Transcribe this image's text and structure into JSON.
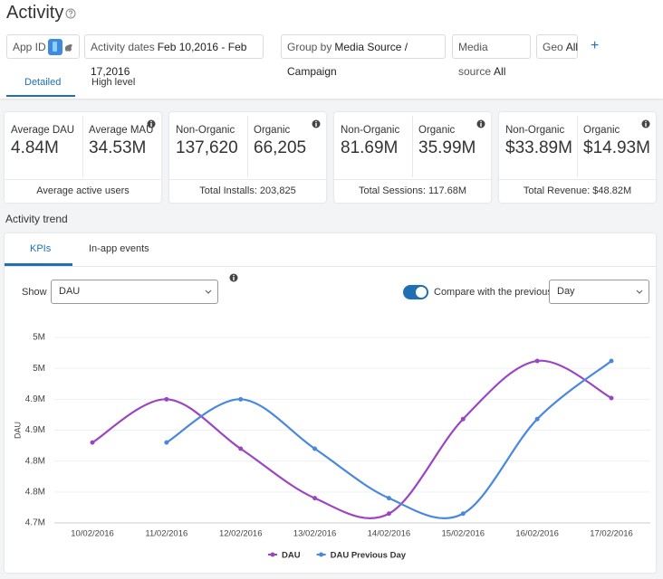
{
  "header": {
    "title": "Activity",
    "filters": [
      {
        "label": "App ID"
      },
      {
        "label": "Activity dates",
        "value": "Feb 10,2016 - Feb 17,2016"
      },
      {
        "label": "Group by",
        "value": "Media Source / Campaign"
      },
      {
        "label": "Media source",
        "value": "All"
      },
      {
        "label": "Geo",
        "value": "All"
      }
    ],
    "add": "+"
  },
  "tabs": [
    "Detailed",
    "High level"
  ],
  "cards": [
    {
      "metrics": [
        {
          "label": "Average DAU",
          "value": "4.84M"
        },
        {
          "label": "Average MAU",
          "value": "34.53M"
        }
      ],
      "footer": "Average active users"
    },
    {
      "metrics": [
        {
          "label": "Non-Organic",
          "value": "137,620"
        },
        {
          "label": "Organic",
          "value": "66,205"
        }
      ],
      "footer": "Total Installs: 203,825"
    },
    {
      "metrics": [
        {
          "label": "Non-Organic",
          "value": "81.69M"
        },
        {
          "label": "Organic",
          "value": "35.99M"
        }
      ],
      "footer": "Total Sessions: 117.68M"
    },
    {
      "metrics": [
        {
          "label": "Non-Organic",
          "value": "$33.89M"
        },
        {
          "label": "Organic",
          "value": "$14.93M"
        }
      ],
      "footer": "Total Revenue: $48.82M"
    }
  ],
  "section_title": "Activity trend",
  "chart_tabs": [
    "KPIs",
    "In-app events"
  ],
  "controls": {
    "show_label": "Show",
    "show_value": "DAU",
    "compare_label": "Compare with the previous",
    "compare_value": "Day"
  },
  "chart_data": {
    "type": "line",
    "y_label": "DAU",
    "categories": [
      "10/02/2016",
      "11/02/2016",
      "12/02/2016",
      "13/02/2016",
      "14/02/2016",
      "15/02/2016",
      "16/02/2016",
      "17/02/2016"
    ],
    "series": [
      {
        "name": "DAU",
        "color": "#9b45c2",
        "values": [
          4830000,
          4900000,
          4820000,
          4740000,
          4715000,
          4868000,
          4962000,
          4902000
        ]
      },
      {
        "name": "DAU Previous Day",
        "color": "#4a87e0",
        "values": [
          null,
          4830000,
          4900000,
          4820000,
          4740000,
          4715000,
          4868000,
          4962000
        ]
      }
    ],
    "ylim": [
      4700000,
      5000000
    ],
    "yticks": [
      {
        "value": 4700000,
        "label": "4.7M"
      },
      {
        "value": 4750000,
        "label": "4.8M"
      },
      {
        "value": 4800000,
        "label": "4.8M"
      },
      {
        "value": 4850000,
        "label": "4.9M"
      },
      {
        "value": 4900000,
        "label": "4.9M"
      },
      {
        "value": 4950000,
        "label": "5M"
      },
      {
        "value": 5000000,
        "label": "5M"
      }
    ],
    "grid": true,
    "legend": "bottom"
  }
}
